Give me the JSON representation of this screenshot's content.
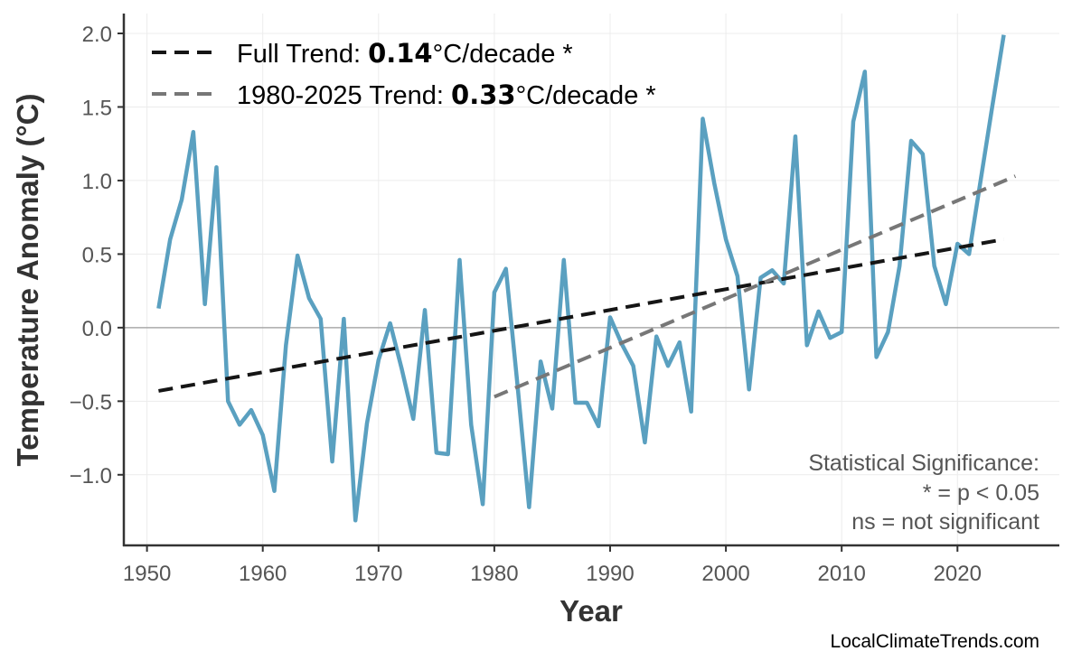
{
  "chart_data": {
    "type": "line",
    "title": "",
    "xlabel": "Year",
    "ylabel": "Temperature Anomaly (°C)",
    "xlim": [
      1948,
      2028.8
    ],
    "ylim": [
      -1.48,
      2.135
    ],
    "xticks": [
      1950,
      1960,
      1970,
      1980,
      1990,
      2000,
      2010,
      2020
    ],
    "yticks": [
      -1.0,
      -0.5,
      0.0,
      0.5,
      1.0,
      1.5,
      2.0
    ],
    "ytick_labels": [
      "−1.0",
      "−0.5",
      "0.0",
      "0.5",
      "1.0",
      "1.5",
      "2.0"
    ],
    "grid": true,
    "legend_placement": "top-left",
    "colors": {
      "series": "#5aa0c0",
      "full_trend": "#151515",
      "recent_trend": "#777777",
      "zero_line": "#aaaaaa"
    },
    "series": [
      {
        "x": [
          1951,
          1952,
          1953,
          1954,
          1955,
          1956,
          1957,
          1958,
          1959,
          1960,
          1961,
          1962,
          1963,
          1964,
          1965,
          1966,
          1967,
          1968,
          1969,
          1970,
          1971,
          1972,
          1973,
          1974,
          1975,
          1976,
          1977,
          1978,
          1979,
          1980,
          1981,
          1982,
          1983,
          1984,
          1985,
          1986,
          1987,
          1988,
          1989,
          1990,
          1991,
          1992,
          1993,
          1994,
          1995,
          1996,
          1997,
          1998,
          1999,
          2000,
          2001,
          2002,
          2003,
          2004,
          2005,
          2006,
          2007,
          2008,
          2009,
          2010,
          2011,
          2012,
          2013,
          2014,
          2015,
          2016,
          2017,
          2018,
          2019,
          2020,
          2021,
          2022,
          2023,
          2024
        ],
        "values": [
          0.13,
          0.6,
          0.87,
          1.33,
          0.16,
          1.09,
          -0.5,
          -0.66,
          -0.56,
          -0.73,
          -1.11,
          -0.12,
          0.49,
          0.2,
          0.06,
          -0.91,
          0.06,
          -1.31,
          -0.65,
          -0.22,
          0.03,
          -0.28,
          -0.62,
          0.12,
          -0.85,
          -0.86,
          0.46,
          -0.66,
          -1.2,
          0.24,
          0.4,
          -0.39,
          -1.22,
          -0.23,
          -0.55,
          0.46,
          -0.51,
          -0.51,
          -0.67,
          0.07,
          -0.11,
          -0.26,
          -0.78,
          -0.06,
          -0.26,
          -0.1,
          -0.57,
          1.42,
          0.98,
          0.6,
          0.35,
          -0.42,
          0.34,
          0.39,
          0.3,
          1.3,
          -0.12,
          0.11,
          -0.07,
          -0.03,
          1.4,
          1.74,
          -0.2,
          -0.03,
          0.42,
          1.27,
          1.18,
          0.42,
          0.16,
          0.57,
          0.5,
          1.0,
          1.5,
          1.99
        ]
      }
    ],
    "trends": [
      {
        "legend_prefix": "Full Trend: ",
        "rate": "0.14",
        "legend_suffix": "°C/decade *",
        "x": [
          1951,
          2024
        ],
        "y": [
          -0.43,
          0.6
        ]
      },
      {
        "legend_prefix": "1980-2025 Trend: ",
        "rate": "0.33",
        "legend_suffix": "°C/decade *",
        "x": [
          1980,
          2025
        ],
        "y": [
          -0.47,
          1.03
        ]
      }
    ],
    "annotation": [
      "Statistical Significance:",
      "* = p < 0.05",
      "ns = not significant"
    ],
    "credit": "LocalClimateTrends.com"
  }
}
